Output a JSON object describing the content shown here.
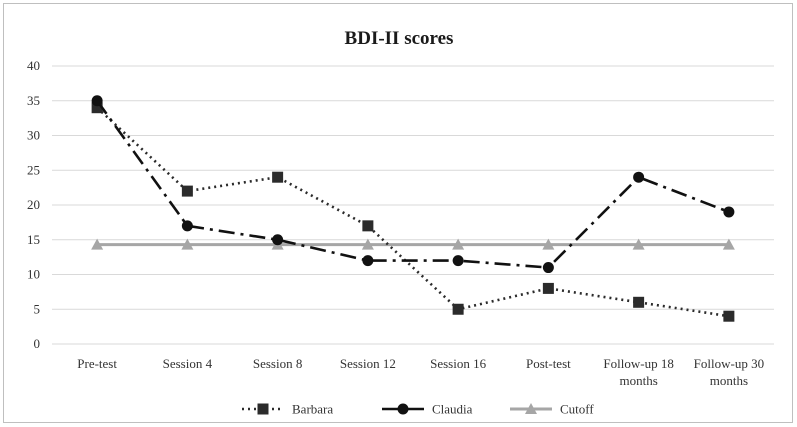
{
  "chart_data": {
    "type": "line",
    "title": "BDI-II scores",
    "xlabel": "",
    "ylabel": "",
    "categories": [
      "Pre-test",
      "Session 4",
      "Session 8",
      "Session 12",
      "Session 16",
      "Post-test",
      "Follow-up 18 months",
      "Follow-up 30 months"
    ],
    "category_lines": [
      [
        "Pre-test"
      ],
      [
        "Session 4"
      ],
      [
        "Session 8"
      ],
      [
        "Session 12"
      ],
      [
        "Session 16"
      ],
      [
        "Post-test"
      ],
      [
        "Follow-up 18",
        "months"
      ],
      [
        "Follow-up 30",
        "months"
      ]
    ],
    "ylim": [
      0,
      40
    ],
    "yticks": [
      "0",
      "5",
      "10",
      "15",
      "20",
      "25",
      "30",
      "35",
      "40"
    ],
    "grid": true,
    "legend_position": "bottom",
    "series": [
      {
        "name": "Barbara",
        "values": [
          34,
          22,
          24,
          17,
          5,
          8,
          6,
          4
        ],
        "color": "#2b2b2b",
        "dash": "dotted",
        "marker": "square"
      },
      {
        "name": "Claudia",
        "values": [
          35,
          17,
          15,
          12,
          12,
          11,
          24,
          19
        ],
        "color": "#111111",
        "dash": "long-dash-dot",
        "marker": "circle"
      },
      {
        "name": "Cutoff",
        "values": [
          14.3,
          14.3,
          14.3,
          14.3,
          14.3,
          14.3,
          14.3,
          14.3
        ],
        "color": "#a6a6a6",
        "dash": "solid",
        "marker": "triangle"
      }
    ]
  }
}
